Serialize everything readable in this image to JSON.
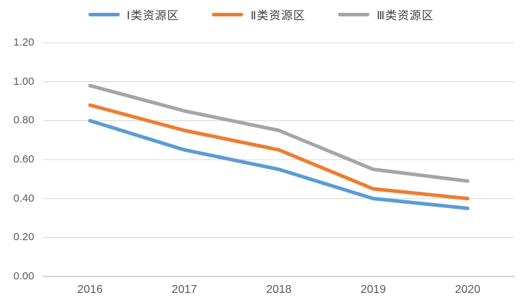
{
  "chart_data": {
    "type": "line",
    "title": "",
    "categories": [
      "2016",
      "2017",
      "2018",
      "2019",
      "2020"
    ],
    "series": [
      {
        "name": "Ⅰ类资源区",
        "color": "#5B9BD5",
        "values": [
          0.8,
          0.65,
          0.55,
          0.4,
          0.35
        ]
      },
      {
        "name": "Ⅱ类资源区",
        "color": "#ED7D31",
        "values": [
          0.88,
          0.75,
          0.65,
          0.45,
          0.4
        ]
      },
      {
        "name": "Ⅲ类资源区",
        "color": "#A5A5A5",
        "values": [
          0.98,
          0.85,
          0.75,
          0.55,
          0.49
        ]
      }
    ],
    "xlabel": "",
    "ylabel": "",
    "ylim": [
      0.0,
      1.2
    ],
    "ytick_step": 0.2,
    "yticks": [
      "0.00",
      "0.20",
      "0.40",
      "0.60",
      "0.80",
      "1.00",
      "1.20"
    ],
    "grid": true,
    "legend_position": "top",
    "colors": {
      "gridline": "#d9d9d9",
      "axis_line": "#c8c8c8",
      "tick_label": "#595959",
      "legend_text": "#404040",
      "background": "#ffffff"
    }
  }
}
